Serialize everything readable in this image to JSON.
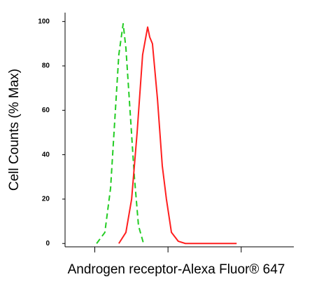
{
  "chart_data": {
    "type": "line",
    "x_label": "Androgen receptor-Alexa Fluor® 647",
    "y_label": "Cell Counts (% Max)",
    "xlim": [
      0,
      100
    ],
    "ylim": [
      -1.5,
      104
    ],
    "xticks": [
      13,
      45,
      77
    ],
    "yticks": [
      0,
      20,
      40,
      60,
      80,
      100
    ],
    "series": [
      {
        "color": "#22cc22",
        "dash": true,
        "x": [
          13.8,
          17.4,
          19.9,
          22,
          23.5,
          25.4,
          26.6,
          28.4,
          30.3,
          32.1,
          34.3
        ],
        "values": [
          0,
          5,
          25,
          60,
          85,
          99,
          88,
          60,
          30,
          8,
          0
        ]
      },
      {
        "color": "#ff1f1f",
        "dash": false,
        "x": [
          23.5,
          26.6,
          29.1,
          31.5,
          33.9,
          36.1,
          37,
          38.2,
          40.4,
          42.5,
          44.3,
          46.5,
          49.5,
          52.6,
          75
        ],
        "values": [
          0,
          5,
          20,
          50,
          85,
          97.5,
          93,
          90,
          65,
          35,
          20,
          5,
          1,
          0,
          0
        ]
      }
    ]
  }
}
